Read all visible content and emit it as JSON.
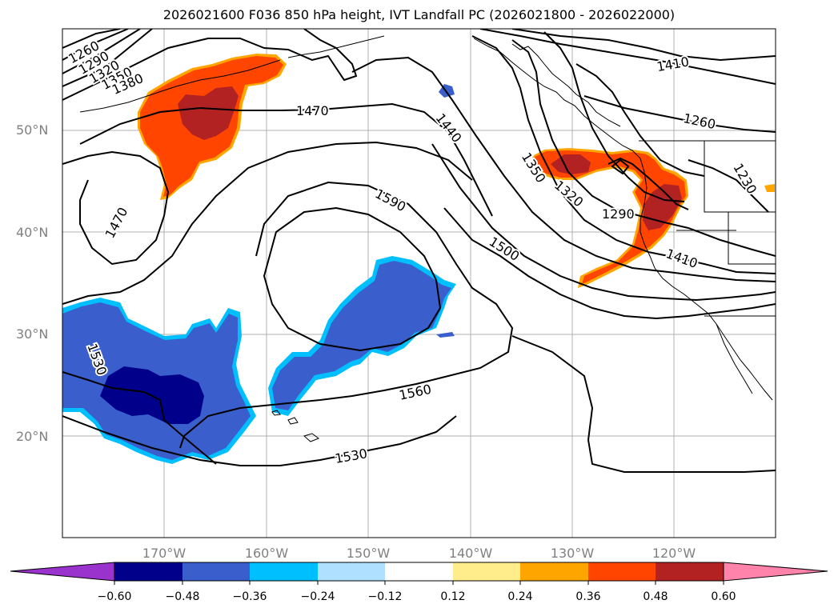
{
  "title": "2026021600 F036 850 hPa height, IVT Landfall PC (2026021800 - 2026022000)",
  "map": {
    "lat_labels": [
      "50°N",
      "40°N",
      "30°N",
      "20°N"
    ],
    "lon_labels": [
      "170°W",
      "160°W",
      "150°W",
      "140°W",
      "130°W",
      "120°W"
    ],
    "grid_color": "#b0b0b0",
    "coast_color": "#000000"
  },
  "contours": {
    "line_color": "#000000",
    "labels": [
      "1260",
      "1290",
      "1320",
      "1350",
      "1380",
      "1470",
      "1440",
      "1410",
      "1260",
      "1230",
      "1350",
      "1320",
      "1290",
      "1410",
      "1590",
      "1500",
      "1470",
      "1530",
      "1560",
      "1530"
    ]
  },
  "fills": {
    "positive_dark": "#b22222",
    "positive": "#ff4500",
    "positive_light": "#ffa500",
    "negative_darkest": "#00008b",
    "negative_dark": "#3a5fcd",
    "negative": "#00bfff",
    "negative_light": "#b0e0ff"
  },
  "colorbar": {
    "colors": [
      "#9a32cd",
      "#00008b",
      "#3a5fcd",
      "#00bfff",
      "#b0e0ff",
      "#ffffff",
      "#ffec8b",
      "#ffa500",
      "#ff4500",
      "#b22222",
      "#ff83aa"
    ],
    "tick_labels": [
      "−0.60",
      "−0.48",
      "−0.36",
      "−0.24",
      "−0.12",
      "0.12",
      "0.24",
      "0.36",
      "0.48",
      "0.60"
    ]
  }
}
